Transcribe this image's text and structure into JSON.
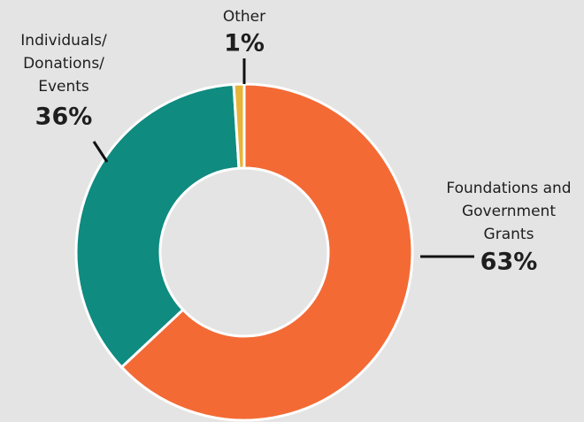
{
  "chart_data": {
    "type": "donut",
    "categories": [
      [
        "Foundations and",
        "Government",
        "Grants"
      ],
      [
        "Individuals/",
        "Donations/",
        "Events"
      ],
      [
        "Other"
      ]
    ],
    "values": [
      63,
      36,
      1
    ],
    "value_labels": [
      "63%",
      "36%",
      "1%"
    ],
    "colors": [
      "#f36a35",
      "#0f8b80",
      "#e7b43b"
    ]
  }
}
